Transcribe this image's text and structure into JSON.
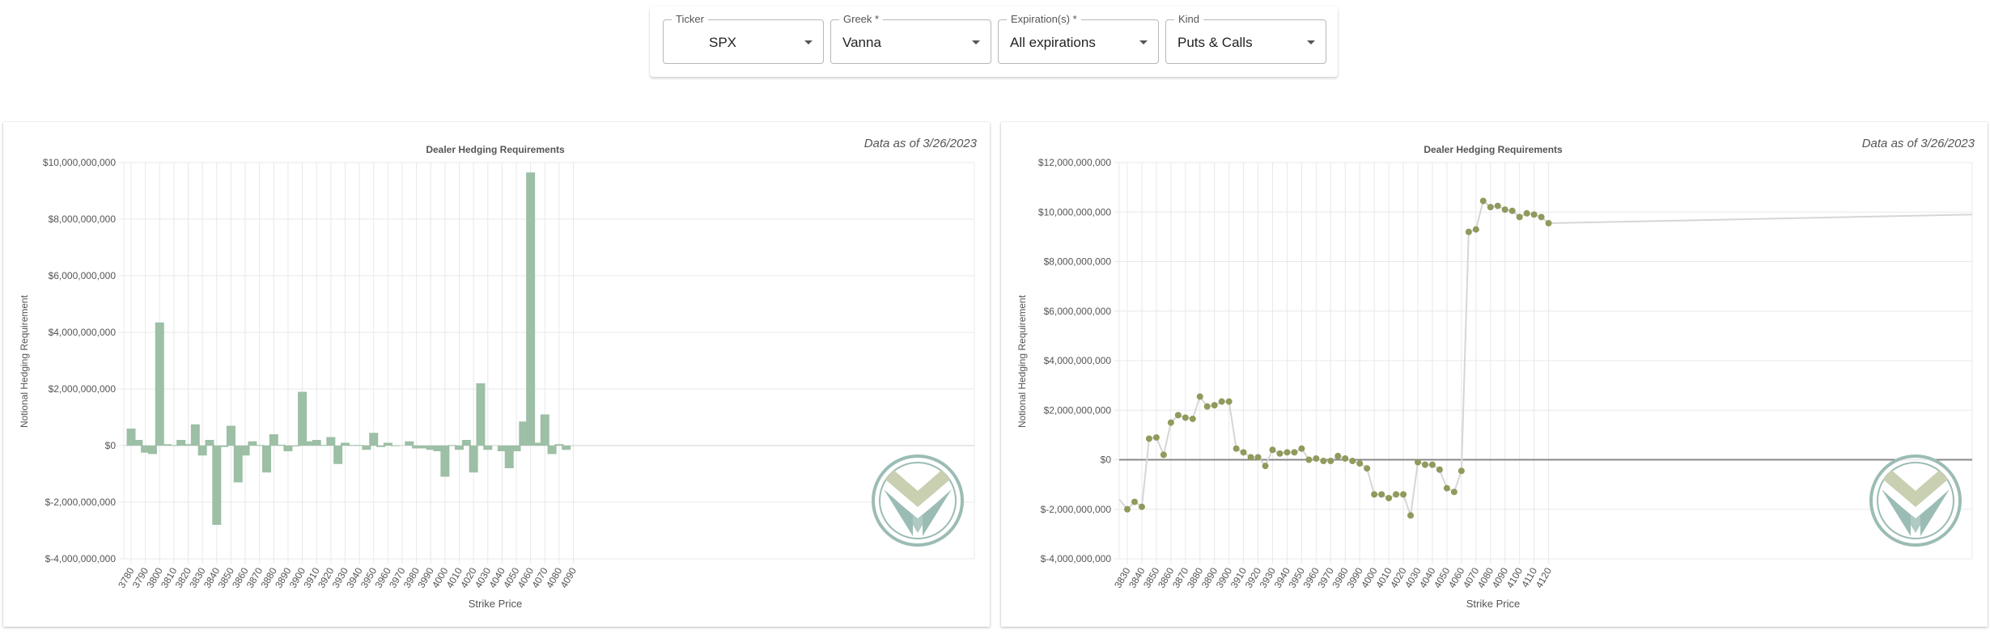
{
  "filters": {
    "ticker": {
      "label": "Ticker",
      "value": "SPX"
    },
    "greek": {
      "label": "Greek *",
      "value": "Vanna"
    },
    "expirations": {
      "label": "Expiration(s) *",
      "value": "All expirations"
    },
    "kind": {
      "label": "Kind",
      "value": "Puts & Calls"
    }
  },
  "charts": {
    "left": {
      "as_of": "Data as of 3/26/2023"
    },
    "right": {
      "as_of": "Data as of 3/26/2023"
    }
  },
  "colors": {
    "bar": "#9cbfa5",
    "line": "#d6d6d6",
    "point": "#8f9a5c",
    "logo_top": "#c9cfb1",
    "logo_bottom": "#9bbcb4"
  },
  "icons": {
    "logo": "valley-chevron-logo"
  },
  "chart_data": [
    {
      "type": "bar",
      "title": "Dealer Hedging Requirements",
      "xlabel": "Strike Price",
      "ylabel": "Notional Hedging Requirement",
      "ylim": [
        -4000000000,
        10000000000
      ],
      "yticks": [
        "$-4,000,000,000",
        "$-2,000,000,000",
        "$0",
        "$2,000,000,000",
        "$4,000,000,000",
        "$6,000,000,000",
        "$8,000,000,000",
        "$10,000,000,000"
      ],
      "ytick_values": [
        -4000000000,
        -2000000000,
        0,
        2000000000,
        4000000000,
        6000000000,
        8000000000,
        10000000000
      ],
      "tick_labels": [
        "3780",
        "3790",
        "3800",
        "3810",
        "3820",
        "3830",
        "3840",
        "3850",
        "3860",
        "3870",
        "3880",
        "3890",
        "3900",
        "3910",
        "3920",
        "3930",
        "3940",
        "3950",
        "3960",
        "3970",
        "3980",
        "3990",
        "4000",
        "4010",
        "4020",
        "4030",
        "4040",
        "4050",
        "4060",
        "4070",
        "4080",
        "4090"
      ],
      "x": [
        3780,
        3785,
        3790,
        3795,
        3800,
        3805,
        3810,
        3815,
        3820,
        3825,
        3830,
        3835,
        3840,
        3845,
        3850,
        3855,
        3860,
        3865,
        3870,
        3875,
        3880,
        3885,
        3890,
        3895,
        3900,
        3905,
        3910,
        3915,
        3920,
        3925,
        3930,
        3935,
        3940,
        3945,
        3950,
        3955,
        3960,
        3965,
        3970,
        3975,
        3980,
        3985,
        3990,
        3995,
        4000,
        4005,
        4010,
        4015,
        4020,
        4025,
        4030,
        4035,
        4040,
        4045,
        4050,
        4055,
        4060,
        4065,
        4070,
        4075,
        4080,
        4085,
        4090,
        4095
      ],
      "values": [
        600000000,
        200000000,
        -250000000,
        -300000000,
        4350000000,
        50000000,
        20000000,
        200000000,
        50000000,
        750000000,
        -350000000,
        200000000,
        -2800000000,
        -50000000,
        700000000,
        -1300000000,
        -350000000,
        150000000,
        20000000,
        -950000000,
        400000000,
        30000000,
        -200000000,
        -20000000,
        1900000000,
        150000000,
        200000000,
        20000000,
        300000000,
        -650000000,
        100000000,
        20000000,
        20000000,
        -150000000,
        450000000,
        -50000000,
        100000000,
        10000000,
        0,
        150000000,
        -100000000,
        -100000000,
        -150000000,
        -200000000,
        -1100000000,
        20000000,
        -150000000,
        200000000,
        -950000000,
        2200000000,
        -150000000,
        0,
        -200000000,
        -800000000,
        -200000000,
        850000000,
        9650000000,
        100000000,
        1100000000,
        -300000000,
        50000000,
        -150000000,
        0,
        0
      ]
    },
    {
      "type": "line",
      "title": "Dealer Hedging Requirements",
      "xlabel": "Strike Price",
      "ylabel": "Notional Hedging Requirement",
      "ylim": [
        -4000000000,
        12000000000
      ],
      "yticks": [
        "$-4,000,000,000",
        "$-2,000,000,000",
        "$0",
        "$2,000,000,000",
        "$4,000,000,000",
        "$6,000,000,000",
        "$8,000,000,000",
        "$10,000,000,000",
        "$12,000,000,000"
      ],
      "ytick_values": [
        -4000000000,
        -2000000000,
        0,
        2000000000,
        4000000000,
        6000000000,
        8000000000,
        10000000000,
        12000000000
      ],
      "tick_labels": [
        "3830",
        "3840",
        "3850",
        "3860",
        "3870",
        "3880",
        "3890",
        "3900",
        "3910",
        "3920",
        "3930",
        "3940",
        "3950",
        "3960",
        "3970",
        "3980",
        "3990",
        "4000",
        "4010",
        "4020",
        "4030",
        "4040",
        "4050",
        "4060",
        "4070",
        "4080",
        "4090",
        "4100",
        "4110",
        "4120"
      ],
      "x": [
        3830,
        3835,
        3840,
        3845,
        3850,
        3855,
        3860,
        3865,
        3870,
        3875,
        3880,
        3885,
        3890,
        3895,
        3900,
        3905,
        3910,
        3915,
        3920,
        3925,
        3930,
        3935,
        3940,
        3945,
        3950,
        3955,
        3960,
        3965,
        3970,
        3975,
        3980,
        3985,
        3990,
        3995,
        4000,
        4005,
        4010,
        4015,
        4020,
        4025,
        4030,
        4035,
        4040,
        4045,
        4050,
        4055,
        4060,
        4065,
        4070,
        4075,
        4080,
        4085,
        4090,
        4095,
        4100,
        4105,
        4110,
        4115,
        4120
      ],
      "values": [
        -2000000000,
        -1700000000,
        -1900000000,
        850000000,
        900000000,
        200000000,
        1500000000,
        1800000000,
        1700000000,
        1650000000,
        2550000000,
        2150000000,
        2200000000,
        2350000000,
        2350000000,
        450000000,
        300000000,
        100000000,
        100000000,
        -250000000,
        400000000,
        250000000,
        300000000,
        300000000,
        450000000,
        0,
        50000000,
        -50000000,
        -50000000,
        150000000,
        50000000,
        -50000000,
        -150000000,
        -350000000,
        -1400000000,
        -1400000000,
        -1550000000,
        -1400000000,
        -1400000000,
        -2250000000,
        -100000000,
        -200000000,
        -200000000,
        -400000000,
        -1150000000,
        -1300000000,
        -450000000,
        9200000000,
        9300000000,
        10450000000,
        10200000000,
        10250000000,
        10100000000,
        10050000000,
        9800000000,
        9950000000,
        9900000000,
        9800000000,
        9550000000
      ]
    }
  ]
}
